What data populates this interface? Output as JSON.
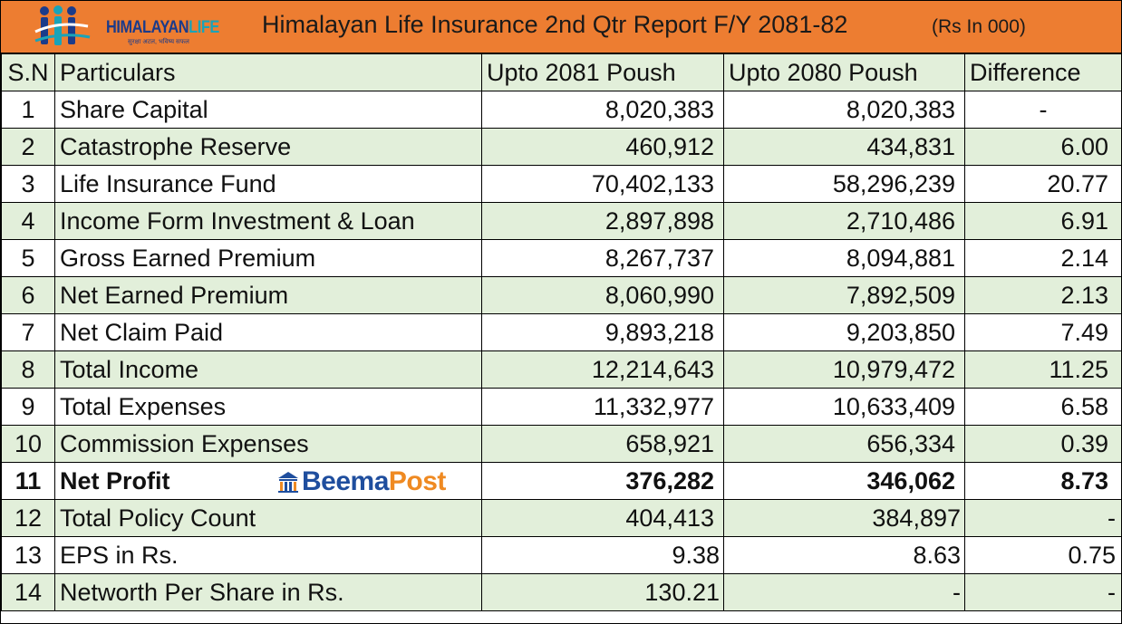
{
  "header": {
    "logo_name_main": "HIMALAYAN",
    "logo_name_accent": "LIFE",
    "logo_tagline": "सुरक्षा अटल, भविष्य सफल",
    "title": "Himalayan Life Insurance 2nd Qtr Report F/Y 2081-82",
    "unit": "(Rs In 000)"
  },
  "table": {
    "columns": [
      "S.N",
      "Particulars",
      "Upto 2081 Poush",
      "Upto 2080 Poush",
      "Difference"
    ],
    "rows": [
      {
        "sn": "1",
        "particular": "Share Capital",
        "current": "8,020,383",
        "previous": "8,020,383",
        "difference": "-"
      },
      {
        "sn": "2",
        "particular": "Catastrophe Reserve",
        "current": "460,912",
        "previous": "434,831",
        "difference": "6.00"
      },
      {
        "sn": "3",
        "particular": "Life Insurance Fund",
        "current": "70,402,133",
        "previous": "58,296,239",
        "difference": "20.77"
      },
      {
        "sn": "4",
        "particular": "Income Form Investment & Loan",
        "current": "2,897,898",
        "previous": "2,710,486",
        "difference": "6.91"
      },
      {
        "sn": "5",
        "particular": "Gross Earned Premium",
        "current": "8,267,737",
        "previous": "8,094,881",
        "difference": "2.14"
      },
      {
        "sn": "6",
        "particular": "Net Earned Premium",
        "current": "8,060,990",
        "previous": "7,892,509",
        "difference": "2.13"
      },
      {
        "sn": "7",
        "particular": "Net Claim Paid",
        "current": "9,893,218",
        "previous": "9,203,850",
        "difference": "7.49"
      },
      {
        "sn": "8",
        "particular": "Total Income",
        "current": "12,214,643",
        "previous": "10,979,472",
        "difference": "11.25"
      },
      {
        "sn": "9",
        "particular": "Total Expenses",
        "current": "11,332,977",
        "previous": "10,633,409",
        "difference": "6.58"
      },
      {
        "sn": "10",
        "particular": "Commission Expenses",
        "current": "658,921",
        "previous": "656,334",
        "difference": "0.39"
      },
      {
        "sn": "11",
        "particular": "Net Profit",
        "current": "376,282",
        "previous": "346,062",
        "difference": "8.73"
      },
      {
        "sn": "12",
        "particular": "Total Policy Count",
        "current": "404,413",
        "previous": "384,897",
        "difference": "-"
      },
      {
        "sn": "13",
        "particular": "EPS in Rs.",
        "current": "9.38",
        "previous": "8.63",
        "difference": "0.75"
      },
      {
        "sn": "14",
        "particular": "Networth Per Share in Rs.",
        "current": "130.21",
        "previous": "-",
        "difference": "-"
      }
    ]
  },
  "watermark": {
    "brand_main": "Beema",
    "brand_accent": "Post"
  },
  "colors": {
    "banner": "#ed7d31",
    "band": "#e2efda",
    "logo_blue": "#1b3b8a",
    "logo_teal": "#1aa3b8",
    "beema_blue": "#1f4e9e",
    "beema_orange": "#ef8a22"
  }
}
